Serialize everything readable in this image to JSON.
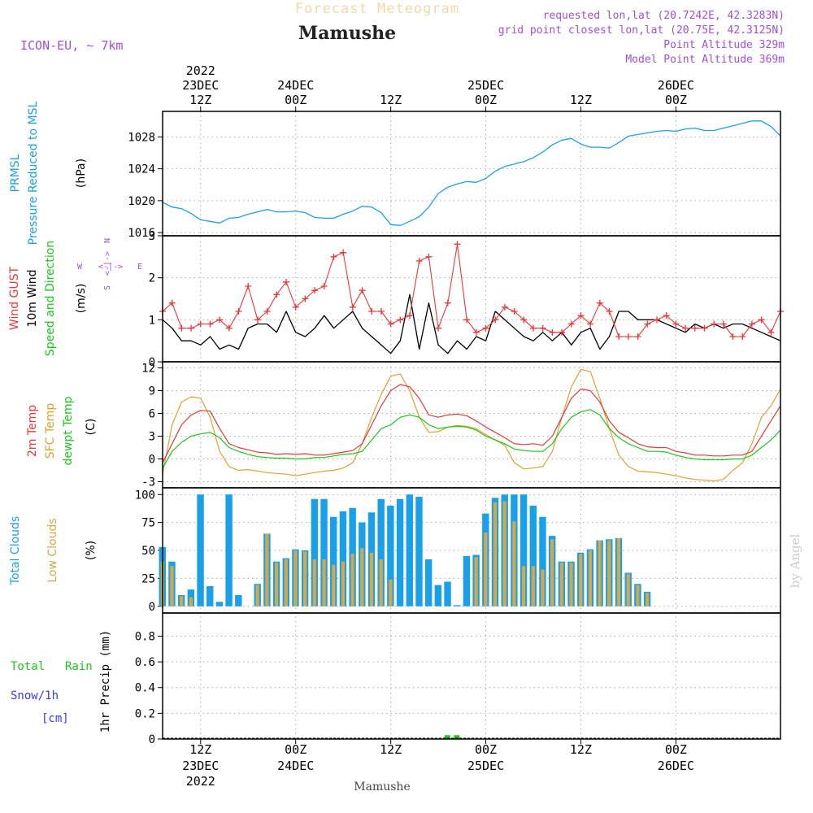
{
  "header": {
    "overlay_title": "Forecast Meteogram",
    "station_title": "Mamushe",
    "model": "ICON-EU, ~ 7km",
    "requested": "requested lon,lat (20.7242E, 42.3283N)",
    "grid_point": "grid point closest lon,lat (20.75E, 42.3125N)",
    "point_altitude": "Point Altitude 329m",
    "model_altitude": "Model Point Altitude 369m",
    "footer_station": "Mamushe",
    "watermark": "by Angel"
  },
  "time_axis": {
    "start_hour": 8,
    "end_hour": 73,
    "ticks": [
      {
        "hour": 12,
        "time": "12Z",
        "date": "23DEC",
        "year": "2022"
      },
      {
        "hour": 22,
        "time": "00Z",
        "date": "24DEC",
        "year": ""
      },
      {
        "hour": 32,
        "time": "12Z",
        "date": "",
        "year": ""
      },
      {
        "hour": 42,
        "time": "00Z",
        "date": "25DEC",
        "year": ""
      },
      {
        "hour": 52,
        "time": "12Z",
        "date": "",
        "year": ""
      },
      {
        "hour": 62,
        "time": "00Z",
        "date": "26DEC",
        "year": ""
      }
    ]
  },
  "colors": {
    "pressure": "#1aa0e8",
    "gust": "#e83838",
    "wind": "#000000",
    "temp2m": "#e83838",
    "sfc": "#e0a030",
    "dewpt": "#19c819",
    "total_clouds": "#1aa0e8",
    "low_clouds": "#d4a84a",
    "rain": "#19c819",
    "snow": "#3a3aee",
    "compass": "#a050d8"
  },
  "panels": {
    "pressure": {
      "labels": [
        "PRMSL",
        "Pressure Reduced to MSL",
        "(hPa)"
      ],
      "yticks": [
        1016,
        1020,
        1024,
        1028
      ]
    },
    "wind": {
      "labels": [
        "Wind GUST",
        "10m Wind",
        "Speed and Direction",
        "(m/s)"
      ],
      "yticks": [
        0,
        1,
        2,
        3
      ],
      "compass": {
        "n": "N",
        "s": "S",
        "w": "W",
        "e": "E",
        "arrow": "<-|->"
      }
    },
    "temp": {
      "labels": [
        "2m Temp",
        "SFC Temp",
        "dewpt Temp",
        "(C)"
      ],
      "yticks": [
        -3,
        0,
        3,
        6,
        9,
        12
      ]
    },
    "clouds": {
      "labels": [
        "Total Clouds",
        "Low Clouds",
        "(%)"
      ],
      "yticks": [
        0,
        25,
        50,
        75,
        100
      ]
    },
    "precip": {
      "labels": [
        "Total",
        "Rain",
        "Snow/1h",
        "[cm]",
        "1hr Precip (mm)"
      ],
      "yticks": [
        "0",
        "0.2",
        "0.4",
        "0.6",
        "0.8"
      ]
    }
  },
  "chart_data": [
    {
      "type": "line",
      "title": "PRMSL Pressure Reduced to MSL",
      "ylabel": "(hPa)",
      "ylim": [
        1015.6,
        1031.2
      ],
      "x": [
        8,
        9,
        10,
        11,
        12,
        13,
        14,
        15,
        16,
        17,
        18,
        19,
        20,
        21,
        22,
        23,
        24,
        25,
        26,
        27,
        28,
        29,
        30,
        31,
        32,
        33,
        34,
        35,
        36,
        37,
        38,
        39,
        40,
        41,
        42,
        43,
        44,
        45,
        46,
        47,
        48,
        49,
        50,
        51,
        52,
        53,
        54,
        55,
        56,
        57,
        58,
        59,
        60,
        61,
        62,
        63,
        64,
        65,
        66,
        67,
        68,
        69,
        70,
        71,
        72,
        73
      ],
      "series": [
        {
          "name": "PRMSL",
          "values": [
            1019.8,
            1019.2,
            1019.0,
            1018.4,
            1017.6,
            1017.4,
            1017.2,
            1017.8,
            1017.9,
            1018.3,
            1018.6,
            1018.9,
            1018.6,
            1018.6,
            1018.7,
            1018.5,
            1017.9,
            1017.8,
            1017.8,
            1018.3,
            1018.7,
            1019.3,
            1019.2,
            1018.5,
            1017.0,
            1016.9,
            1017.4,
            1018.0,
            1019.2,
            1020.9,
            1021.7,
            1022.1,
            1022.4,
            1022.3,
            1022.8,
            1023.7,
            1024.3,
            1024.6,
            1024.9,
            1025.4,
            1026.1,
            1027.0,
            1027.6,
            1027.8,
            1027.1,
            1026.7,
            1026.7,
            1026.6,
            1027.3,
            1028.1,
            1028.3,
            1028.5,
            1028.7,
            1028.8,
            1028.7,
            1029.0,
            1029.1,
            1028.8,
            1028.8,
            1029.1,
            1029.4,
            1029.7,
            1030.0,
            1030.0,
            1029.3,
            1028.1
          ]
        }
      ]
    },
    {
      "type": "line",
      "title": "Wind GUST / 10m Wind Speed and Direction",
      "ylabel": "(m/s)",
      "ylim": [
        0,
        3
      ],
      "x": [
        8,
        9,
        10,
        11,
        12,
        13,
        14,
        15,
        16,
        17,
        18,
        19,
        20,
        21,
        22,
        23,
        24,
        25,
        26,
        27,
        28,
        29,
        30,
        31,
        32,
        33,
        34,
        35,
        36,
        37,
        38,
        39,
        40,
        41,
        42,
        43,
        44,
        45,
        46,
        47,
        48,
        49,
        50,
        51,
        52,
        53,
        54,
        55,
        56,
        57,
        58,
        59,
        60,
        61,
        62,
        63,
        64,
        65,
        66,
        67,
        68,
        69,
        70,
        71,
        72,
        73
      ],
      "series": [
        {
          "name": "Wind GUST",
          "values": [
            1.2,
            1.4,
            0.8,
            0.8,
            0.9,
            0.9,
            1.0,
            0.8,
            1.2,
            1.8,
            1.0,
            1.2,
            1.6,
            1.9,
            1.3,
            1.5,
            1.7,
            1.8,
            2.5,
            2.6,
            1.3,
            1.7,
            1.2,
            1.2,
            0.9,
            1.0,
            1.1,
            2.4,
            2.5,
            0.8,
            1.4,
            2.8,
            1.0,
            0.7,
            0.8,
            1.0,
            1.3,
            1.2,
            1.0,
            0.8,
            0.8,
            0.7,
            0.7,
            0.9,
            1.1,
            0.9,
            1.4,
            1.2,
            0.6,
            0.6,
            0.6,
            0.9,
            1.0,
            1.1,
            0.9,
            0.8,
            0.8,
            0.8,
            0.9,
            0.9,
            0.6,
            0.6,
            0.9,
            1.0,
            0.7,
            1.2
          ]
        },
        {
          "name": "10m Wind",
          "values": [
            1.0,
            0.8,
            0.5,
            0.5,
            0.4,
            0.6,
            0.3,
            0.4,
            0.3,
            0.8,
            0.9,
            0.9,
            0.7,
            1.2,
            0.7,
            0.6,
            0.8,
            1.1,
            0.8,
            1.0,
            1.2,
            0.8,
            0.6,
            0.4,
            0.2,
            0.5,
            1.6,
            0.3,
            1.4,
            0.4,
            0.2,
            0.5,
            0.3,
            0.6,
            0.5,
            1.2,
            1.0,
            0.8,
            0.6,
            0.5,
            0.7,
            0.5,
            0.7,
            0.4,
            0.7,
            0.8,
            0.3,
            0.6,
            1.2,
            1.2,
            1.0,
            1.0,
            1.0,
            0.9,
            0.8,
            0.7,
            0.9,
            0.8,
            0.9,
            0.8,
            0.9,
            0.9,
            0.8,
            0.7,
            0.6,
            0.5
          ]
        }
      ]
    },
    {
      "type": "line",
      "title": "2m Temp / SFC Temp / dewpt Temp",
      "ylabel": "(C)",
      "ylim": [
        -3.8,
        12.8
      ],
      "x": [
        8,
        9,
        10,
        11,
        12,
        13,
        14,
        15,
        16,
        17,
        18,
        19,
        20,
        21,
        22,
        23,
        24,
        25,
        26,
        27,
        28,
        29,
        30,
        31,
        32,
        33,
        34,
        35,
        36,
        37,
        38,
        39,
        40,
        41,
        42,
        43,
        44,
        45,
        46,
        47,
        48,
        49,
        50,
        51,
        52,
        53,
        54,
        55,
        56,
        57,
        58,
        59,
        60,
        61,
        62,
        63,
        64,
        65,
        66,
        67,
        68,
        69,
        70,
        71,
        72,
        73
      ],
      "series": [
        {
          "name": "2m Temp",
          "values": [
            -0.5,
            2.0,
            4.5,
            5.8,
            6.4,
            6.3,
            4.0,
            2.0,
            1.5,
            1.2,
            0.9,
            0.8,
            0.6,
            0.7,
            0.6,
            0.7,
            0.5,
            0.5,
            0.7,
            0.9,
            1.1,
            2.0,
            4.5,
            7.0,
            9.0,
            9.8,
            9.5,
            8.0,
            5.8,
            5.5,
            5.8,
            5.9,
            5.7,
            5.0,
            4.2,
            3.5,
            2.8,
            2.0,
            1.9,
            2.0,
            1.8,
            3.0,
            5.5,
            8.0,
            9.2,
            9.0,
            7.5,
            5.0,
            3.5,
            2.8,
            2.0,
            1.6,
            1.5,
            1.5,
            1.0,
            0.8,
            0.5,
            0.5,
            0.4,
            0.4,
            0.5,
            0.5,
            1.0,
            3.0,
            5.0,
            7.0
          ]
        },
        {
          "name": "SFC Temp",
          "values": [
            -2.0,
            4.5,
            7.5,
            8.2,
            8.0,
            5.5,
            1.0,
            -1.0,
            -1.5,
            -1.4,
            -1.6,
            -1.8,
            -1.9,
            -2.0,
            -2.2,
            -2.0,
            -1.8,
            -1.6,
            -1.5,
            -1.2,
            -0.5,
            2.0,
            5.5,
            8.5,
            10.9,
            11.2,
            9.0,
            5.5,
            3.5,
            3.6,
            4.2,
            4.4,
            4.3,
            4.0,
            3.2,
            2.5,
            1.8,
            -0.5,
            -1.3,
            -1.2,
            -1.0,
            1.0,
            5.5,
            9.5,
            11.8,
            11.5,
            8.0,
            4.0,
            0.5,
            -1.0,
            -1.6,
            -1.7,
            -1.8,
            -2.0,
            -2.2,
            -2.5,
            -2.7,
            -2.8,
            -2.9,
            -2.7,
            -1.5,
            -0.5,
            2.0,
            5.5,
            7.0,
            9.2
          ]
        },
        {
          "name": "dewpt Temp",
          "values": [
            -1.2,
            1.0,
            2.2,
            3.0,
            3.3,
            3.5,
            2.8,
            1.5,
            1.0,
            0.6,
            0.3,
            0.2,
            0.1,
            0.1,
            0.0,
            0.0,
            0.2,
            0.2,
            0.4,
            0.6,
            0.7,
            1.0,
            2.5,
            4.0,
            4.5,
            5.5,
            5.8,
            5.5,
            4.5,
            4.0,
            4.2,
            4.3,
            4.2,
            3.8,
            3.0,
            2.5,
            2.0,
            1.3,
            1.1,
            1.0,
            1.0,
            2.0,
            4.0,
            5.5,
            6.2,
            6.5,
            5.8,
            4.0,
            2.8,
            2.0,
            1.5,
            1.0,
            1.0,
            0.9,
            0.5,
            0.2,
            0.0,
            -0.1,
            -0.1,
            -0.1,
            0.0,
            0.0,
            0.5,
            1.5,
            2.5,
            3.8
          ]
        }
      ]
    },
    {
      "type": "bar",
      "title": "Total Clouds / Low Clouds",
      "ylabel": "(%)",
      "ylim": [
        -6,
        106
      ],
      "x": [
        8,
        9,
        10,
        11,
        12,
        13,
        14,
        15,
        16,
        17,
        18,
        19,
        20,
        21,
        22,
        23,
        24,
        25,
        26,
        27,
        28,
        29,
        30,
        31,
        32,
        33,
        34,
        35,
        36,
        37,
        38,
        39,
        40,
        41,
        42,
        43,
        44,
        45,
        46,
        47,
        48,
        49,
        50,
        51,
        52,
        53,
        54,
        55,
        56,
        57,
        58,
        59,
        60,
        61,
        62,
        63,
        64,
        65,
        66,
        67,
        68,
        69,
        70,
        71,
        72,
        73
      ],
      "series": [
        {
          "name": "Total Clouds",
          "values": [
            53,
            40,
            10,
            15,
            100,
            18,
            4,
            100,
            10,
            0,
            20,
            65,
            40,
            43,
            51,
            50,
            96,
            96,
            80,
            85,
            88,
            75,
            84,
            96,
            90,
            96,
            100,
            98,
            42,
            19,
            22,
            1,
            45,
            46,
            83,
            97,
            100,
            100,
            100,
            90,
            80,
            63,
            40,
            40,
            48,
            51,
            59,
            60,
            61,
            30,
            20,
            13,
            0,
            0,
            0,
            0,
            0,
            0,
            0,
            0,
            0,
            0,
            0,
            0,
            0,
            0
          ]
        },
        {
          "name": "Low Clouds",
          "values": [
            40,
            36,
            9,
            8,
            0,
            0,
            0,
            0,
            0,
            0,
            19,
            65,
            39,
            42,
            50,
            49,
            42,
            42,
            37,
            40,
            47,
            52,
            48,
            42,
            24,
            0,
            0,
            0,
            0,
            0,
            0,
            0,
            0,
            44,
            66,
            93,
            94,
            76,
            36,
            36,
            33,
            60,
            39,
            39,
            47,
            50,
            59,
            59,
            61,
            29,
            19,
            12,
            0,
            0,
            0,
            0,
            0,
            0,
            0,
            0,
            0,
            0,
            0,
            0,
            0,
            0
          ]
        }
      ]
    },
    {
      "type": "bar",
      "title": "1hr Precip",
      "ylabel": "1hr Precip (mm)",
      "ylim": [
        0,
        0.98
      ],
      "x": [
        38,
        39
      ],
      "series": [
        {
          "name": "Total Rain",
          "values": [
            0.03,
            0.03
          ]
        }
      ]
    }
  ]
}
